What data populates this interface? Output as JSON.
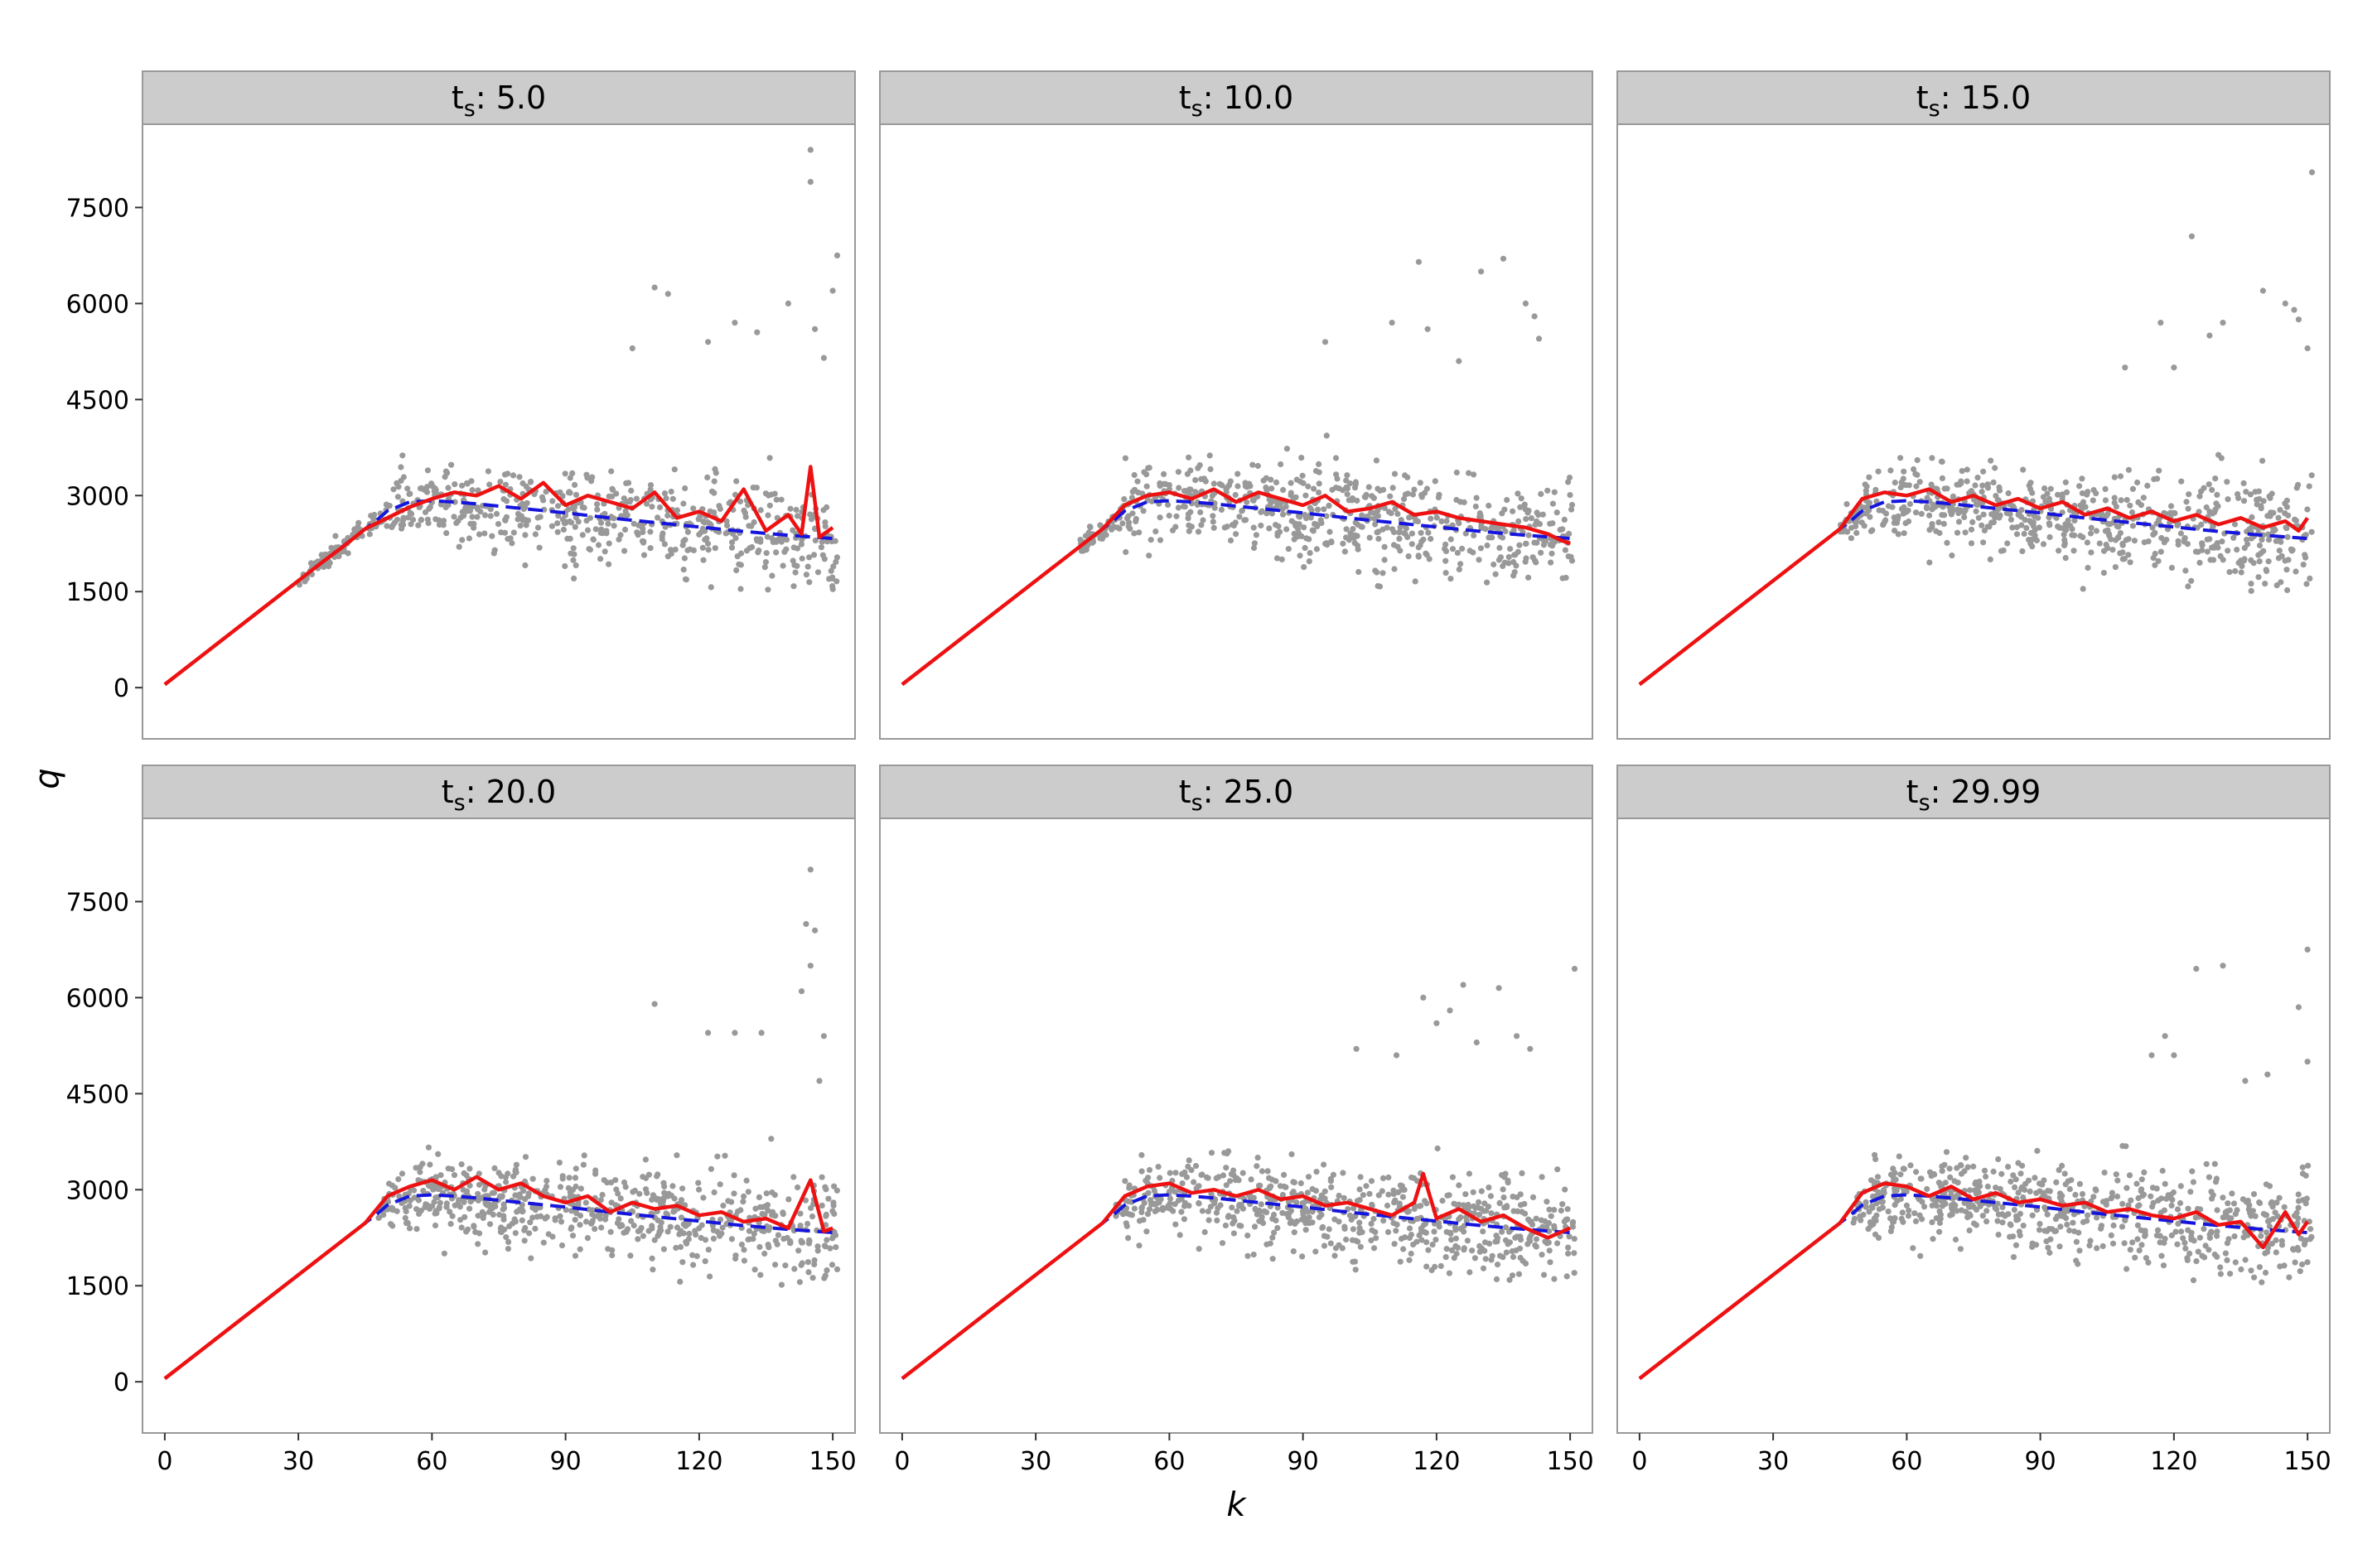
{
  "chart_data": {
    "type": "scatter",
    "layout": "facet-grid 2x3, shared axes",
    "xlabel": "k",
    "ylabel": "q",
    "xlim": [
      -5,
      155
    ],
    "ylim": [
      -800,
      8800
    ],
    "x_ticks": [
      0,
      30,
      60,
      90,
      120,
      150
    ],
    "y_ticks": [
      0,
      1500,
      3000,
      4500,
      6000,
      7500
    ],
    "grid": false,
    "legend": "none",
    "colors": {
      "points": "#999999",
      "empirical_line": "#ee1111",
      "fitted_curve": "#1515dd",
      "strip_background": "#cccccc",
      "panel_border": "#999999"
    },
    "series_styles": [
      {
        "role": "points",
        "mark": "scatter",
        "color": "#999999"
      },
      {
        "role": "empirical",
        "mark": "solid line",
        "color": "#ee1111"
      },
      {
        "role": "fitted",
        "mark": "dashed line",
        "color": "#1515dd"
      }
    ],
    "fitted_curve": {
      "x": [
        0,
        10,
        20,
        30,
        40,
        45,
        48,
        50,
        55,
        60,
        65,
        70,
        80,
        90,
        100,
        110,
        120,
        130,
        140,
        150
      ],
      "y": [
        50,
        590,
        1130,
        1670,
        2210,
        2480,
        2640,
        2760,
        2900,
        2920,
        2900,
        2870,
        2800,
        2730,
        2650,
        2580,
        2510,
        2440,
        2380,
        2330
      ]
    },
    "panels": [
      {
        "label_main": "t",
        "label_sub": "s",
        "label_value": ": 5.0",
        "empirical_line": {
          "x": [
            0,
            10,
            20,
            30,
            35,
            40,
            45,
            50,
            55,
            60,
            65,
            70,
            75,
            80,
            85,
            90,
            95,
            100,
            105,
            110,
            115,
            120,
            125,
            130,
            135,
            140,
            143,
            145,
            147,
            150
          ],
          "y": [
            50,
            590,
            1130,
            1670,
            1940,
            2200,
            2480,
            2650,
            2820,
            2950,
            3050,
            3000,
            3150,
            2950,
            3200,
            2850,
            3000,
            2900,
            2800,
            3050,
            2650,
            2750,
            2600,
            3100,
            2450,
            2700,
            2400,
            3450,
            2350,
            2500
          ]
        },
        "points": {
          "n": 650,
          "x_from": 30,
          "x_to": 151,
          "spread": 0.25,
          "seed": 11
        },
        "outliers": {
          "x": [
            145,
            145,
            151,
            150,
            110,
            113,
            122,
            140,
            146,
            148,
            105,
            133,
            128
          ],
          "y": [
            8400,
            7900,
            6750,
            6200,
            6250,
            6150,
            5400,
            6000,
            5600,
            5150,
            5300,
            5550,
            5700
          ]
        }
      },
      {
        "label_main": "t",
        "label_sub": "s",
        "label_value": ": 10.0",
        "empirical_line": {
          "x": [
            0,
            10,
            20,
            30,
            40,
            45,
            50,
            55,
            60,
            65,
            70,
            75,
            80,
            85,
            90,
            95,
            100,
            105,
            110,
            115,
            120,
            125,
            130,
            135,
            140,
            145,
            148,
            150
          ],
          "y": [
            50,
            590,
            1130,
            1670,
            2210,
            2480,
            2850,
            3000,
            3050,
            2950,
            3100,
            2900,
            3050,
            2950,
            2850,
            3000,
            2750,
            2800,
            2900,
            2700,
            2750,
            2650,
            2600,
            2550,
            2500,
            2400,
            2300,
            2250
          ]
        },
        "points": {
          "n": 650,
          "x_from": 40,
          "x_to": 151,
          "spread": 0.24,
          "seed": 22
        },
        "outliers": {
          "x": [
            116,
            135,
            130,
            140,
            142,
            143,
            110,
            95,
            125,
            118
          ],
          "y": [
            6650,
            6700,
            6500,
            6000,
            5800,
            5450,
            5700,
            5400,
            5100,
            5600
          ]
        }
      },
      {
        "label_main": "t",
        "label_sub": "s",
        "label_value": ": 15.0",
        "empirical_line": {
          "x": [
            0,
            10,
            20,
            30,
            40,
            45,
            50,
            55,
            60,
            65,
            70,
            75,
            80,
            85,
            90,
            95,
            100,
            105,
            110,
            115,
            120,
            125,
            130,
            135,
            140,
            145,
            148,
            150
          ],
          "y": [
            50,
            590,
            1130,
            1670,
            2210,
            2480,
            2950,
            3050,
            3000,
            3100,
            2900,
            3000,
            2850,
            2950,
            2800,
            2900,
            2700,
            2800,
            2650,
            2750,
            2600,
            2700,
            2550,
            2650,
            2500,
            2600,
            2450,
            2650
          ]
        },
        "points": {
          "n": 650,
          "x_from": 45,
          "x_to": 151,
          "spread": 0.24,
          "seed": 33
        },
        "outliers": {
          "x": [
            151,
            124,
            140,
            145,
            147,
            131,
            117,
            128,
            148,
            150,
            120,
            109
          ],
          "y": [
            8050,
            7050,
            6200,
            6000,
            5900,
            5700,
            5700,
            5500,
            5750,
            5300,
            5000,
            5000
          ]
        }
      },
      {
        "label_main": "t",
        "label_sub": "s",
        "label_value": ": 20.0",
        "empirical_line": {
          "x": [
            0,
            10,
            20,
            30,
            40,
            45,
            50,
            55,
            60,
            65,
            70,
            75,
            80,
            85,
            90,
            95,
            100,
            105,
            110,
            115,
            120,
            125,
            130,
            135,
            140,
            145,
            148,
            150
          ],
          "y": [
            50,
            590,
            1130,
            1670,
            2210,
            2480,
            2900,
            3050,
            3150,
            3000,
            3200,
            3000,
            3100,
            2900,
            2800,
            2900,
            2650,
            2800,
            2700,
            2750,
            2600,
            2650,
            2500,
            2550,
            2400,
            3150,
            2350,
            2400
          ]
        },
        "points": {
          "n": 650,
          "x_from": 48,
          "x_to": 151,
          "spread": 0.24,
          "seed": 44
        },
        "outliers": {
          "x": [
            145,
            144,
            146,
            145,
            143,
            148,
            110,
            122,
            128,
            134,
            147
          ],
          "y": [
            8000,
            7150,
            7050,
            6500,
            6100,
            5400,
            5900,
            5450,
            5450,
            5450,
            4700
          ]
        }
      },
      {
        "label_main": "t",
        "label_sub": "s",
        "label_value": ": 25.0",
        "empirical_line": {
          "x": [
            0,
            10,
            20,
            30,
            40,
            45,
            50,
            55,
            60,
            65,
            70,
            75,
            80,
            85,
            90,
            95,
            100,
            105,
            110,
            115,
            117,
            120,
            125,
            130,
            135,
            140,
            145,
            150
          ],
          "y": [
            50,
            590,
            1130,
            1670,
            2210,
            2480,
            2900,
            3050,
            3100,
            2950,
            3000,
            2900,
            3000,
            2850,
            2900,
            2750,
            2800,
            2700,
            2600,
            2800,
            3250,
            2550,
            2700,
            2500,
            2600,
            2400,
            2250,
            2400
          ]
        },
        "points": {
          "n": 650,
          "x_from": 48,
          "x_to": 151,
          "spread": 0.24,
          "seed": 55
        },
        "outliers": {
          "x": [
            151,
            126,
            134,
            117,
            120,
            123,
            129,
            138,
            141,
            102,
            111
          ],
          "y": [
            6450,
            6200,
            6150,
            6000,
            5600,
            5800,
            5300,
            5400,
            5200,
            5200,
            5100
          ]
        }
      },
      {
        "label_main": "t",
        "label_sub": "s",
        "label_value": ": 29.99",
        "empirical_line": {
          "x": [
            0,
            10,
            20,
            30,
            40,
            45,
            50,
            55,
            60,
            65,
            70,
            75,
            80,
            85,
            90,
            95,
            100,
            105,
            110,
            115,
            120,
            125,
            130,
            135,
            140,
            145,
            148,
            150
          ],
          "y": [
            50,
            590,
            1130,
            1670,
            2210,
            2480,
            2950,
            3100,
            3050,
            2900,
            3050,
            2850,
            2950,
            2800,
            2850,
            2750,
            2800,
            2650,
            2700,
            2600,
            2550,
            2650,
            2450,
            2500,
            2100,
            2650,
            2300,
            2500
          ]
        },
        "points": {
          "n": 650,
          "x_from": 48,
          "x_to": 151,
          "spread": 0.24,
          "seed": 66
        },
        "outliers": {
          "x": [
            150,
            131,
            125,
            148,
            150,
            118,
            115,
            120,
            141,
            136
          ],
          "y": [
            6750,
            6500,
            6450,
            5850,
            5000,
            5400,
            5100,
            5100,
            4800,
            4700
          ]
        }
      }
    ]
  }
}
